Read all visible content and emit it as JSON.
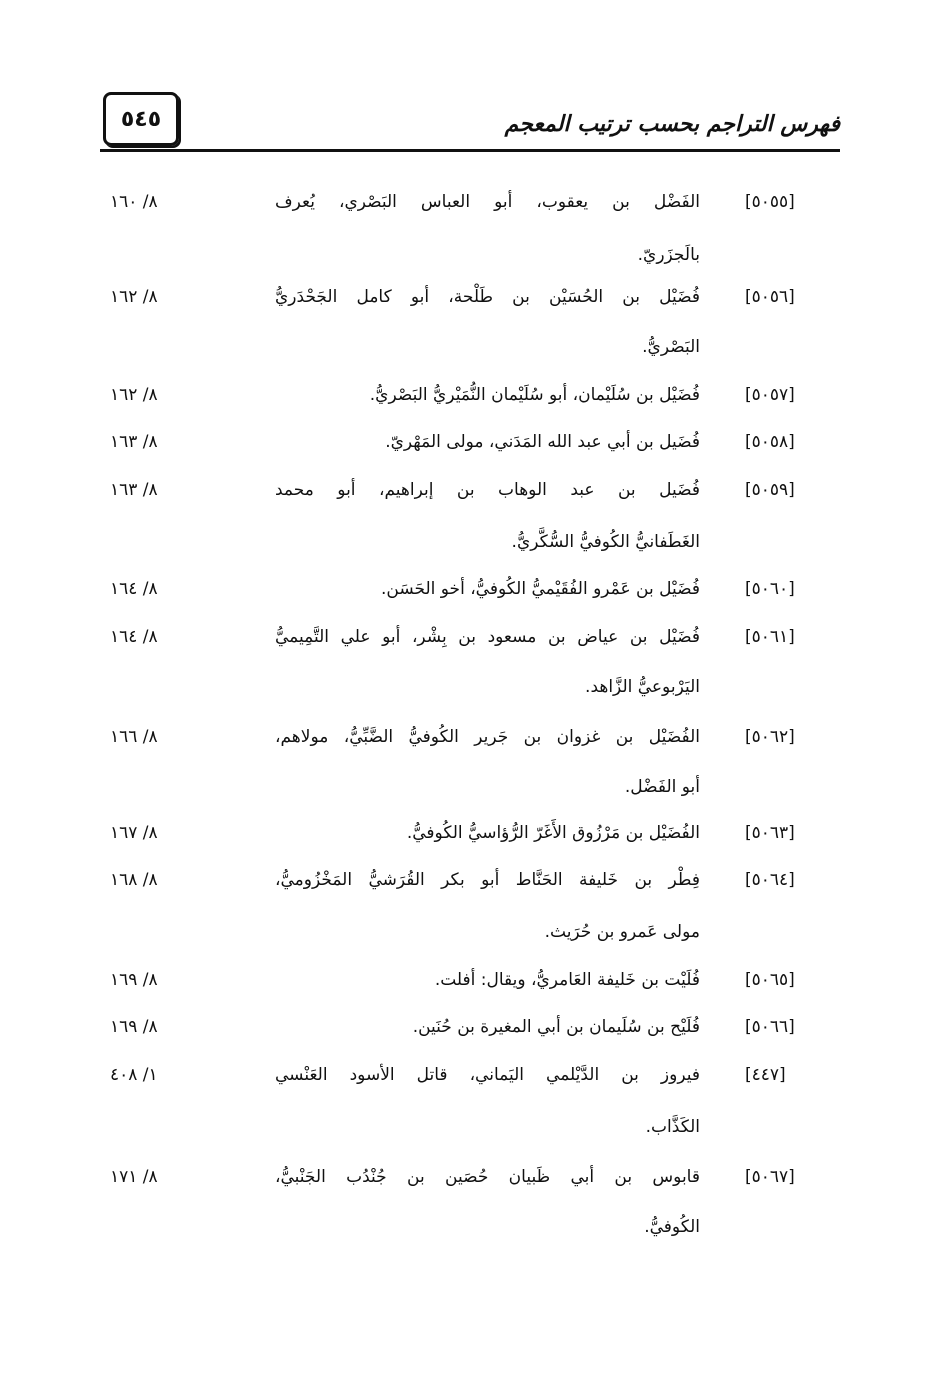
{
  "header": {
    "page_number": "٥٤٥",
    "title": "فهرس التراجم بحسب ترتيب المعجم"
  },
  "entries": [
    {
      "number": "[٥٠٥٥]",
      "lines": [
        "الفَضْل بن يعقوب، أبو العباس البَصْري، يُعرف",
        "بالَجزَريّ."
      ],
      "ref": "٨/ ١٦٠"
    },
    {
      "number": "[٥٠٥٦]",
      "lines": [
        "فُضَيْل بن الحُسَيْن بن طَلْحة، أبو كامل الجَحْدَريُّ",
        "البَصْريُّ."
      ],
      "ref": "٨/ ١٦٢"
    },
    {
      "number": "[٥٠٥٧]",
      "lines": [
        "فُضَيْل بن سُلَيْمان، أبو سُلَيْمان النُّمَيْريُّ البَصْريُّ."
      ],
      "ref": "٨/ ١٦٢"
    },
    {
      "number": "[٥٠٥٨]",
      "lines": [
        "فُضَيل بن أبي عبد الله المَدَني، مولى المَهْريّ."
      ],
      "ref": "٨/ ١٦٣"
    },
    {
      "number": "[٥٠٥٩]",
      "lines": [
        "فُضَيل بن عبد الوهاب بن إبراهيم، أبو محمد",
        "الغَطَفانيُّ الكُوفيُّ السُّكَّريُّ."
      ],
      "ref": "٨/ ١٦٣"
    },
    {
      "number": "[٥٠٦٠]",
      "lines": [
        "فُضَيْل بن عَمْرو الفُقَيْميُّ الكُوفيُّ، أخو الحَسَن."
      ],
      "ref": "٨/ ١٦٤"
    },
    {
      "number": "[٥٠٦١]",
      "lines": [
        "فُضَيْل بن عياض بن مسعود بن بِشْر، أبو علي التَّمِيميُّ",
        "اليَرْبوعيُّ الزَّاهد."
      ],
      "ref": "٨/ ١٦٤"
    },
    {
      "number": "[٥٠٦٢]",
      "lines": [
        "الفُضَيْل بن غزوان بن جَرير الكُوفيُّ الضَّبِّيُّ، مولاهم،",
        "أبو الفَضْل."
      ],
      "ref": "٨/ ١٦٦"
    },
    {
      "number": "[٥٠٦٣]",
      "lines": [
        "الفُضَيْل بن مَرْزُوق الأَغَرّ الرُّؤاسيُّ الكُوفيُّ."
      ],
      "ref": "٨/ ١٦٧"
    },
    {
      "number": "[٥٠٦٤]",
      "lines": [
        "فِطْر بن خَليفة الحَنَّاط أبو بكر القُرَشيُّ المَخْزُوميُّ،",
        "مولى عَمرو بن حُرَيث."
      ],
      "ref": "٨/ ١٦٨"
    },
    {
      "number": "[٥٠٦٥]",
      "lines": [
        "فُلَيْت بن خَليفة العَامريُّ، ويقال: أفلت."
      ],
      "ref": "٨/ ١٦٩"
    },
    {
      "number": "[٥٠٦٦]",
      "lines": [
        "فُلَيْح بن سُلَيمان بن أبي المغيرة بن حُنَين."
      ],
      "ref": "٨/ ١٦٩"
    },
    {
      "number": "[٤٤٧]",
      "lines": [
        "فيروز بن الدَّيْلمي اليَماني، قاتل الأسود العَنْسي",
        "الكَذَّاب."
      ],
      "ref": "١/ ٤٠٨"
    },
    {
      "number": "[٥٠٦٧]",
      "lines": [
        "قابوس بن أبي ظَبيان حُصَين بن جُنْدُب الجَنْبيُّ،",
        "الكُوفيُّ."
      ],
      "ref": "٨/ ١٧١"
    }
  ]
}
